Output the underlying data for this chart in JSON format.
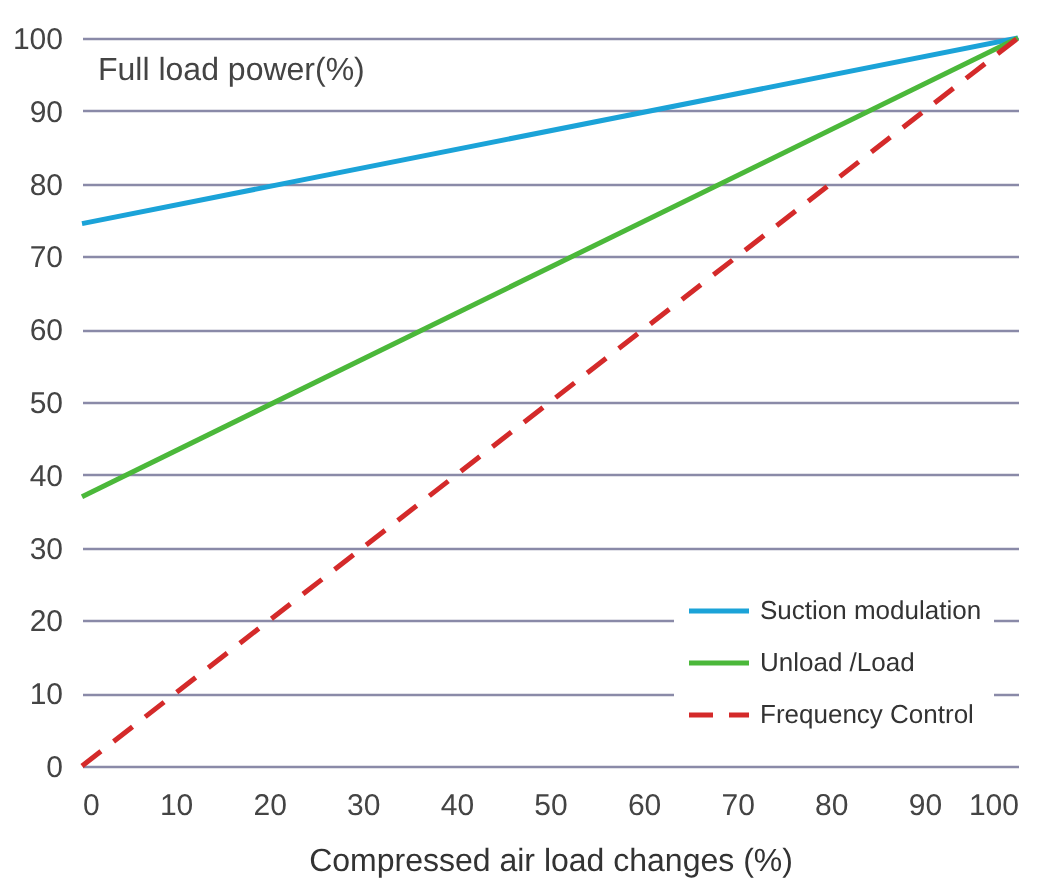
{
  "chart_data": {
    "type": "line",
    "xlabel": "Compressed air load changes (%)",
    "ylabel": "Full load power(%)",
    "x": [
      0,
      100
    ],
    "series": [
      {
        "name": "Suction modulation",
        "color": "#1ba3d8",
        "values": [
          74.5,
          100
        ],
        "line_style": "solid"
      },
      {
        "name": "Unload /Load",
        "color": "#4bb83a",
        "values": [
          37,
          100
        ],
        "line_style": "solid"
      },
      {
        "name": "Frequency Control",
        "color": "#d42a2a",
        "values": [
          0,
          100
        ],
        "line_style": "dashed"
      }
    ],
    "xlim": [
      0,
      100
    ],
    "xticks": [
      0,
      10,
      20,
      30,
      40,
      50,
      60,
      70,
      80,
      90,
      100
    ],
    "ylim": [
      0,
      100
    ],
    "yticks": [
      0,
      10,
      20,
      30,
      40,
      50,
      60,
      70,
      80,
      90,
      100
    ],
    "grid": "y",
    "legend": "bottom right",
    "marker": "none"
  }
}
